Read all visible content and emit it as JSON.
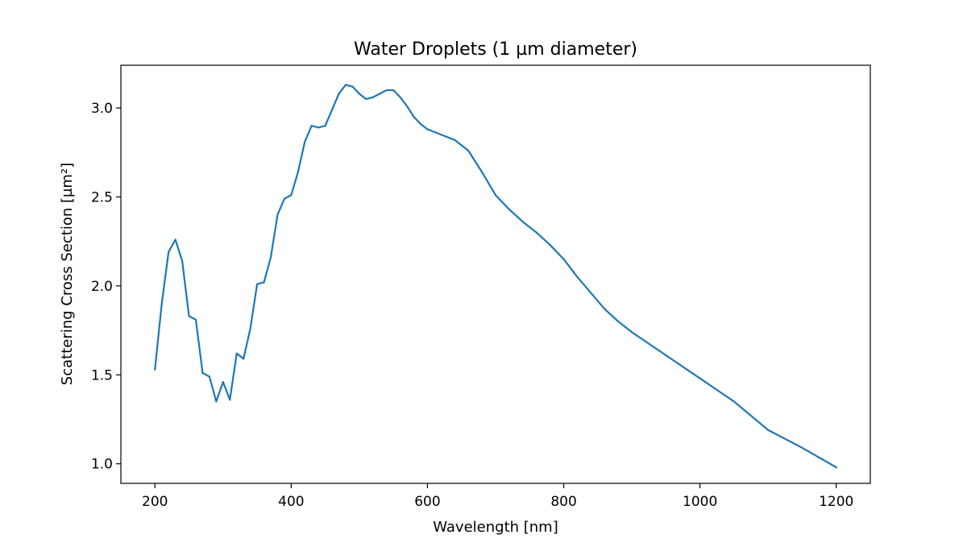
{
  "chart_data": {
    "type": "line",
    "title": "Water Droplets (1 µm diameter)",
    "xlabel": "Wavelength    [nm]",
    "ylabel": "Scattering Cross Section    [µm²]",
    "xlim": [
      150,
      1250
    ],
    "ylim": [
      0.89,
      3.24
    ],
    "xticks": [
      200,
      400,
      600,
      800,
      1000,
      1200
    ],
    "xtick_labels": [
      "200",
      "400",
      "600",
      "800",
      "1000",
      "1200"
    ],
    "yticks": [
      1.0,
      1.5,
      2.0,
      2.5,
      3.0
    ],
    "ytick_labels": [
      "1.0",
      "1.5",
      "2.0",
      "2.5",
      "3.0"
    ],
    "grid": false,
    "line_color": "#1f77b4",
    "series": [
      {
        "x": [
          200,
          210,
          220,
          230,
          240,
          250,
          260,
          270,
          280,
          290,
          300,
          310,
          320,
          330,
          340,
          350,
          360,
          370,
          380,
          390,
          400,
          410,
          420,
          430,
          440,
          450,
          460,
          470,
          480,
          490,
          500,
          510,
          520,
          530,
          540,
          550,
          560,
          570,
          580,
          590,
          600,
          620,
          640,
          650,
          660,
          680,
          700,
          720,
          740,
          760,
          780,
          800,
          820,
          840,
          860,
          880,
          900,
          950,
          1000,
          1050,
          1100,
          1150,
          1200
        ],
        "y": [
          1.53,
          1.9,
          2.19,
          2.26,
          2.14,
          1.83,
          1.81,
          1.51,
          1.49,
          1.35,
          1.46,
          1.36,
          1.62,
          1.59,
          1.76,
          2.01,
          2.02,
          2.16,
          2.4,
          2.49,
          2.51,
          2.64,
          2.81,
          2.9,
          2.89,
          2.9,
          2.99,
          3.08,
          3.13,
          3.12,
          3.08,
          3.05,
          3.06,
          3.08,
          3.1,
          3.1,
          3.06,
          3.01,
          2.95,
          2.91,
          2.88,
          2.85,
          2.82,
          2.79,
          2.76,
          2.64,
          2.51,
          2.43,
          2.36,
          2.3,
          2.23,
          2.15,
          2.05,
          1.96,
          1.87,
          1.8,
          1.74,
          1.61,
          1.48,
          1.35,
          1.19,
          1.09,
          0.98
        ]
      }
    ]
  }
}
